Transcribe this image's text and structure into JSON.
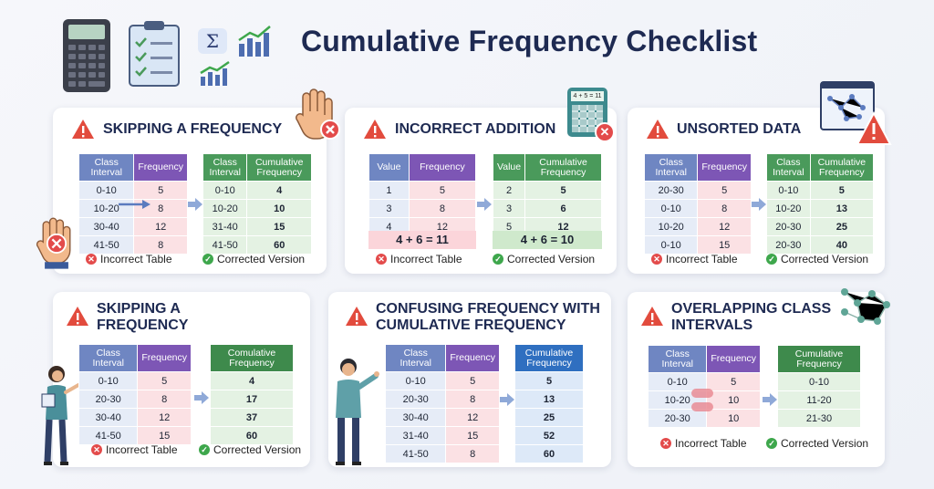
{
  "title": "Cumulative Frequency Checklist",
  "legend": {
    "incorrect": "Incorrect Table",
    "corrected": "Corrected Version"
  },
  "cards": [
    {
      "title": "SKIPPING A FREQUENCY",
      "left": {
        "headers": [
          "Class Interval",
          "Frequency"
        ],
        "rows": [
          [
            "0-10",
            "5"
          ],
          [
            "10-20",
            "8"
          ],
          [
            "30-40",
            "12"
          ],
          [
            "41-50",
            "8"
          ]
        ]
      },
      "right": {
        "headers": [
          "Class Interval",
          "Cumulative Frequency"
        ],
        "rows": [
          [
            "0-10",
            "4"
          ],
          [
            "10-20",
            "10"
          ],
          [
            "31-40",
            "15"
          ],
          [
            "41-50",
            "60"
          ]
        ]
      }
    },
    {
      "title": "INCORRECT ADDITION",
      "left": {
        "headers": [
          "Value",
          "Frequency"
        ],
        "rows": [
          [
            "1",
            "5"
          ],
          [
            "3",
            "8"
          ],
          [
            "4",
            "12"
          ]
        ],
        "sum": "4 + 6 = 11"
      },
      "right": {
        "headers": [
          "Value",
          "Cumulative Frequency"
        ],
        "rows": [
          [
            "2",
            "5"
          ],
          [
            "3",
            "6"
          ],
          [
            "5",
            "12"
          ]
        ],
        "sum": "4 + 6 = 10"
      },
      "calc_display": "4 + 5 = 11"
    },
    {
      "title": "UNSORTED DATA",
      "left": {
        "headers": [
          "Class Interval",
          "Frequency"
        ],
        "rows": [
          [
            "20-30",
            "5"
          ],
          [
            "0-10",
            "8"
          ],
          [
            "10-20",
            "12"
          ],
          [
            "0-10",
            "15"
          ]
        ]
      },
      "right": {
        "headers": [
          "Class Interval",
          "Cumulative Frequency"
        ],
        "rows": [
          [
            "0-10",
            "5"
          ],
          [
            "10-20",
            "13"
          ],
          [
            "20-30",
            "25"
          ],
          [
            "20-30",
            "40"
          ]
        ]
      }
    },
    {
      "title_line1": "SKIPPING A",
      "title_line2": "FREQUENCY",
      "left": {
        "headers": [
          "Class Interval",
          "Frequency"
        ],
        "rows": [
          [
            "0-10",
            "5"
          ],
          [
            "20-30",
            "8"
          ],
          [
            "30-40",
            "12"
          ],
          [
            "41-50",
            "15"
          ]
        ]
      },
      "right": {
        "headers": [
          "Comulative Frequency"
        ],
        "rows": [
          [
            "4"
          ],
          [
            "17"
          ],
          [
            "37"
          ],
          [
            "60"
          ]
        ]
      }
    },
    {
      "title_line1": "CONFUSING FREQUENCY WITH",
      "title_line2": "CUMULATIVE FREQUENCY",
      "left": {
        "headers": [
          "Class Interval",
          "Frequency"
        ],
        "rows": [
          [
            "0-10",
            "5"
          ],
          [
            "20-30",
            "8"
          ],
          [
            "30-40",
            "12"
          ],
          [
            "31-40",
            "15"
          ],
          [
            "41-50",
            "8"
          ]
        ]
      },
      "right": {
        "headers": [
          "Cumulative Frequency"
        ],
        "rows": [
          [
            "5"
          ],
          [
            "13"
          ],
          [
            "25"
          ],
          [
            "52"
          ],
          [
            "60"
          ]
        ]
      }
    },
    {
      "title_line1": "OVERLAPPING CLASS",
      "title_line2": "INTERVALS",
      "left": {
        "headers": [
          "Class Interval",
          "Frequency"
        ],
        "rows": [
          [
            "0-10",
            "5"
          ],
          [
            "10-20",
            "10"
          ],
          [
            "20-30",
            "10"
          ]
        ]
      },
      "right": {
        "headers": [
          "Cumulative Frequency"
        ],
        "rows": [
          [
            "0-10"
          ],
          [
            "11-20"
          ],
          [
            "21-30"
          ]
        ]
      }
    }
  ]
}
